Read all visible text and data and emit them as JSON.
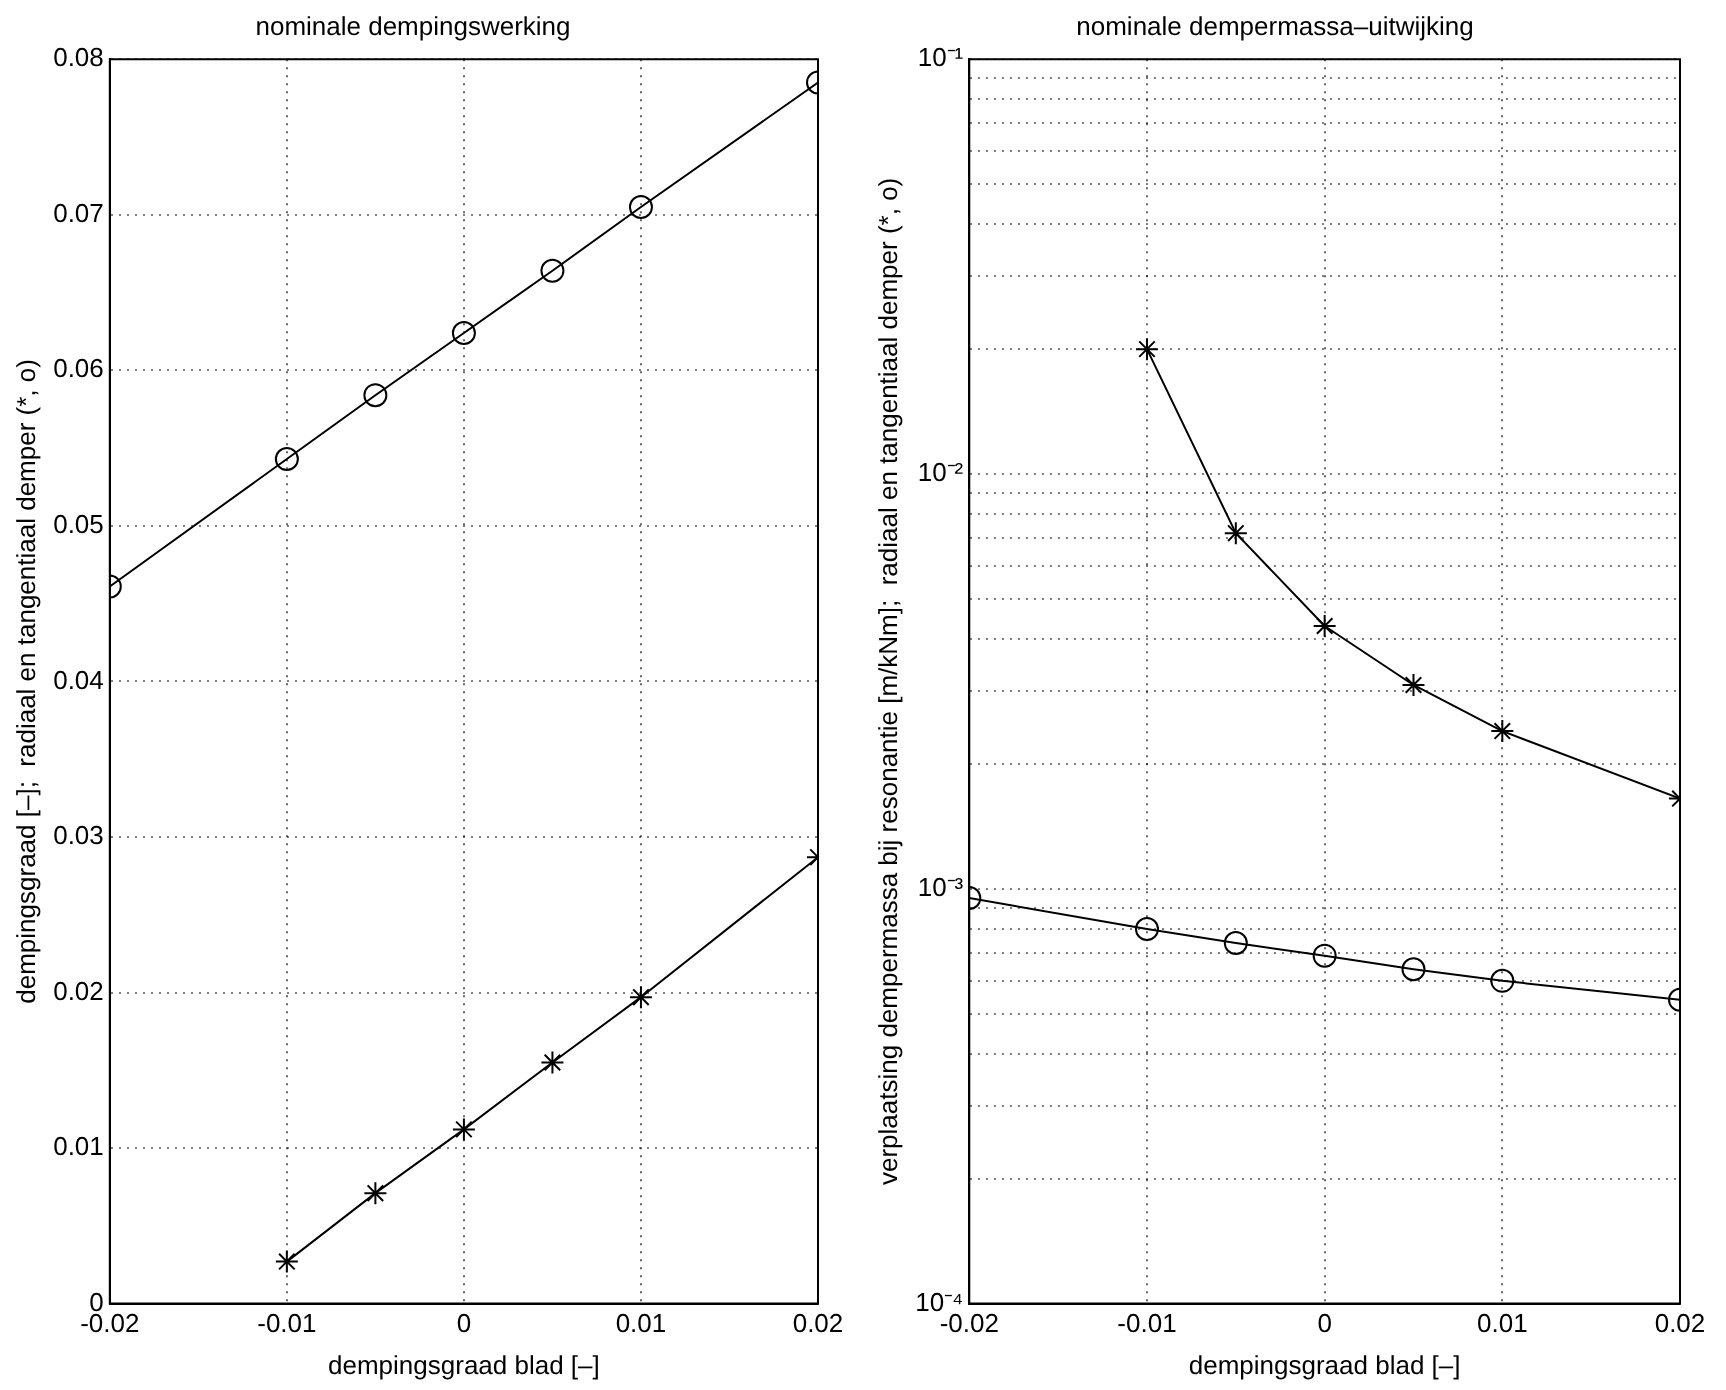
{
  "chart_data": [
    {
      "type": "line",
      "title": "nominale dempingswerking",
      "xlabel": "dempingsgraad blad [–]",
      "ylabel": "dempingsgraad [–];  radiaal en tangentiaal demper (*, o)",
      "xlim": [
        -0.02,
        0.02
      ],
      "xticks": [
        -0.02,
        -0.01,
        0,
        0.01,
        0.02
      ],
      "ylim": [
        0,
        0.08
      ],
      "yticks": [
        0,
        0.01,
        0.02,
        0.03,
        0.04,
        0.05,
        0.06,
        0.07,
        0.08
      ],
      "grid": true,
      "legend": false,
      "line_style": "solid",
      "series": [
        {
          "color": "#000000",
          "marker": "circle",
          "x": [
            -0.02,
            -0.01,
            -0.005,
            0,
            0.005,
            0.01,
            0.02
          ],
          "values": [
            0.0461,
            0.0543,
            0.0584,
            0.0624,
            0.0664,
            0.0705,
            0.0785
          ]
        },
        {
          "color": "#000000",
          "marker": "cross",
          "x": [
            -0.01,
            -0.005,
            0,
            0.005,
            0.01,
            0.02
          ],
          "values": [
            0.0027,
            0.0071,
            0.0112,
            0.0155,
            0.0197,
            0.0287
          ]
        }
      ]
    },
    {
      "type": "line",
      "title": "nominale dempermassa–uitwijking",
      "xlabel": "dempingsgraad blad [–]",
      "ylabel": "verplaatsing dempermassa bij resonantie [m/kNm];  radiaal en tangentiaal demper (*, o)",
      "xlim": [
        -0.02,
        0.02
      ],
      "xticks": [
        -0.02,
        -0.01,
        0,
        0.01,
        0.02
      ],
      "log": "y",
      "ylim": [
        0.0001,
        0.1
      ],
      "yticks": [
        {
          "value": 0.0001,
          "label": "10⁻⁴"
        },
        {
          "value": 0.0002,
          "label": null
        },
        {
          "value": 0.0003,
          "label": null
        },
        {
          "value": 0.0004,
          "label": null
        },
        {
          "value": 0.0005,
          "label": null
        },
        {
          "value": 0.0006,
          "label": null
        },
        {
          "value": 0.0007,
          "label": null
        },
        {
          "value": 0.0008,
          "label": null
        },
        {
          "value": 0.0009,
          "label": null
        },
        {
          "value": 0.001,
          "label": "10⁻³"
        },
        {
          "value": 0.002,
          "label": null
        },
        {
          "value": 0.003,
          "label": null
        },
        {
          "value": 0.004,
          "label": null
        },
        {
          "value": 0.005,
          "label": null
        },
        {
          "value": 0.006,
          "label": null
        },
        {
          "value": 0.007,
          "label": null
        },
        {
          "value": 0.008,
          "label": null
        },
        {
          "value": 0.009,
          "label": null
        },
        {
          "value": 0.01,
          "label": "10⁻²"
        },
        {
          "value": 0.02,
          "label": null
        },
        {
          "value": 0.03,
          "label": null
        },
        {
          "value": 0.04,
          "label": null
        },
        {
          "value": 0.05,
          "label": null
        },
        {
          "value": 0.06,
          "label": null
        },
        {
          "value": 0.07,
          "label": null
        },
        {
          "value": 0.08,
          "label": null
        },
        {
          "value": 0.09,
          "label": null
        },
        {
          "value": 0.1,
          "label": "10⁻¹"
        }
      ],
      "grid": true,
      "legend": false,
      "line_style": "solid",
      "series": [
        {
          "color": "#000000",
          "marker": "cross",
          "x": [
            -0.01,
            -0.005,
            0,
            0.005,
            0.01,
            0.02
          ],
          "values": [
            0.02,
            0.0072,
            0.0043,
            0.0031,
            0.0024,
            0.00165
          ]
        },
        {
          "color": "#000000",
          "marker": "circle",
          "x": [
            -0.02,
            -0.01,
            -0.005,
            0,
            0.005,
            0.01,
            0.02
          ],
          "values": [
            0.00095,
            0.0008,
            0.00074,
            0.00069,
            0.00064,
            0.0006,
            0.00054
          ]
        }
      ]
    }
  ]
}
